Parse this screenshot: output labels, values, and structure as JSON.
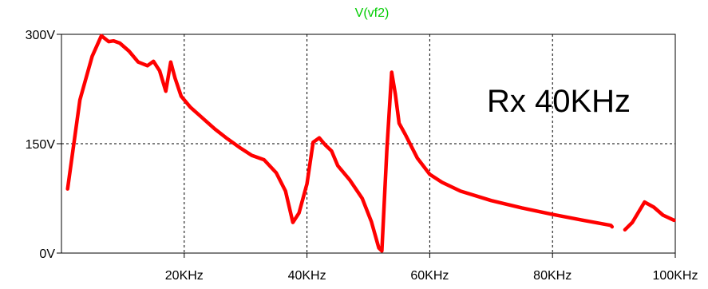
{
  "chart_data": {
    "type": "line",
    "title": "V(vf2)",
    "annotation": "Rx 40KHz",
    "xlabel": "",
    "ylabel": "",
    "x_unit": "Hz",
    "xlim": [
      0,
      100000
    ],
    "ylim": [
      0,
      300
    ],
    "x_ticks": [
      {
        "value": 20000,
        "label": "20KHz"
      },
      {
        "value": 40000,
        "label": "40KHz"
      },
      {
        "value": 60000,
        "label": "60KHz"
      },
      {
        "value": 80000,
        "label": "80KHz"
      },
      {
        "value": 100000,
        "label": "100KHz"
      }
    ],
    "y_ticks": [
      {
        "value": 0,
        "label": "0V"
      },
      {
        "value": 150,
        "label": "150V"
      },
      {
        "value": 300,
        "label": "300V"
      }
    ],
    "grid": true,
    "colors": {
      "trace": "#ff0000",
      "title": "#00cc00",
      "grid": "#000000",
      "axis": "#000000"
    },
    "series": [
      {
        "name": "V(vf2)",
        "segments": [
          {
            "x": [
              1000,
              3000,
              5000,
              6500,
              7700,
              8500,
              9500,
              11000,
              12500,
              14000,
              15000,
              16000,
              17000,
              17800,
              18500,
              19500,
              21000,
              23000,
              25000,
              27000,
              29000,
              31000,
              33000,
              35000,
              36500,
              37700,
              38700,
              40000,
              41000,
              42000,
              43000,
              44000,
              45000,
              47000,
              49000,
              50500,
              51700,
              52200,
              53000,
              53800,
              54400,
              55000,
              56000,
              58000,
              60000,
              62000,
              65000,
              70000,
              75000,
              80000,
              85000,
              89500,
              89700
            ],
            "y": [
              88,
              210,
              270,
              298,
              290,
              291,
              288,
              277,
              262,
              257,
              263,
              250,
              222,
              262,
              240,
              215,
              200,
              185,
              170,
              157,
              145,
              134,
              128,
              110,
              85,
              42,
              55,
              95,
              152,
              158,
              148,
              140,
              120,
              100,
              75,
              43,
              7,
              3,
              140,
              248,
              218,
              178,
              163,
              130,
              108,
              97,
              85,
              72,
              62,
              53,
              45,
              38,
              36
            ]
          },
          {
            "x": [
              91800,
              93000,
              95000,
              96500,
              98000,
              99800
            ],
            "y": [
              32,
              42,
              70,
              63,
              52,
              45
            ]
          }
        ]
      }
    ]
  }
}
